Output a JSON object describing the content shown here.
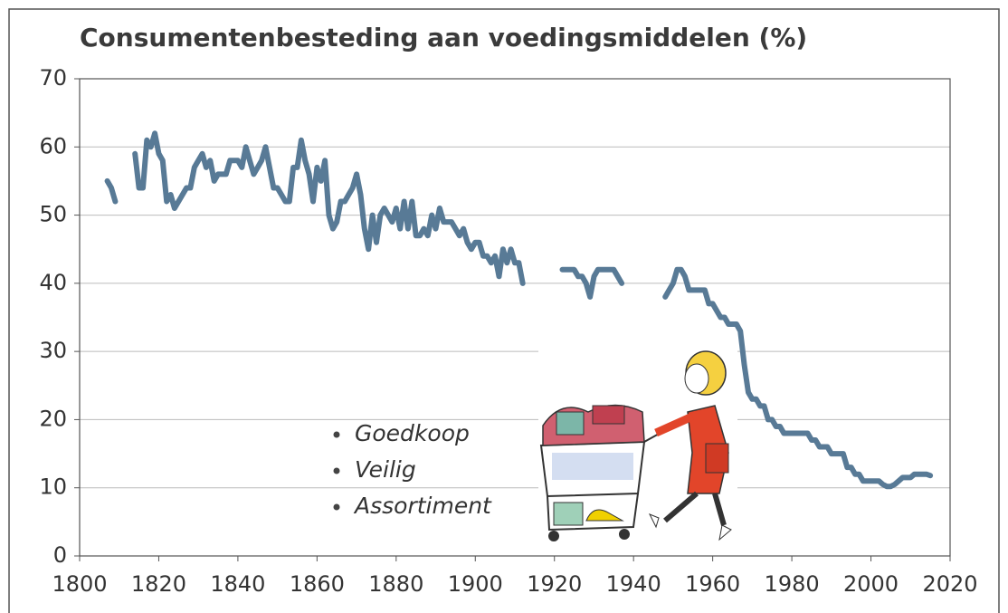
{
  "chart_data": {
    "type": "line",
    "title": "Consumentenbesteding aan voedingsmiddelen  (%)",
    "x": [
      1807,
      1808,
      1809,
      1810,
      1811,
      1812,
      1813,
      1814,
      1815,
      1816,
      1817,
      1818,
      1819,
      1820,
      1821,
      1822,
      1823,
      1824,
      1825,
      1826,
      1827,
      1828,
      1829,
      1830,
      1831,
      1832,
      1833,
      1834,
      1835,
      1836,
      1837,
      1838,
      1839,
      1840,
      1841,
      1842,
      1843,
      1844,
      1845,
      1846,
      1847,
      1848,
      1849,
      1850,
      1851,
      1852,
      1853,
      1854,
      1855,
      1856,
      1857,
      1858,
      1859,
      1860,
      1861,
      1862,
      1863,
      1864,
      1865,
      1866,
      1867,
      1868,
      1869,
      1870,
      1871,
      1872,
      1873,
      1874,
      1875,
      1876,
      1877,
      1878,
      1879,
      1880,
      1881,
      1882,
      1883,
      1884,
      1885,
      1886,
      1887,
      1888,
      1889,
      1890,
      1891,
      1892,
      1893,
      1894,
      1895,
      1896,
      1897,
      1898,
      1899,
      1900,
      1901,
      1902,
      1903,
      1904,
      1905,
      1906,
      1907,
      1908,
      1909,
      1910,
      1911,
      1912,
      1913,
      1914,
      1915,
      1916,
      1917,
      1918,
      1919,
      1920,
      1921,
      1922,
      1923,
      1924,
      1925,
      1926,
      1927,
      1928,
      1929,
      1930,
      1931,
      1932,
      1933,
      1934,
      1935,
      1936,
      1937,
      1938,
      1939,
      1940,
      1941,
      1942,
      1943,
      1944,
      1945,
      1946,
      1947,
      1948,
      1949,
      1950,
      1951,
      1952,
      1953,
      1954,
      1955,
      1956,
      1957,
      1958,
      1959,
      1960,
      1961,
      1962,
      1963,
      1964,
      1965,
      1966,
      1967,
      1968,
      1969,
      1970,
      1971,
      1972,
      1973,
      1974,
      1975,
      1976,
      1977,
      1978,
      1979,
      1980,
      1981,
      1982,
      1983,
      1984,
      1985,
      1986,
      1987,
      1988,
      1989,
      1990,
      1991,
      1992,
      1993,
      1994,
      1995,
      1996,
      1997,
      1998,
      1999,
      2000,
      2001,
      2002,
      2003,
      2004,
      2005,
      2006,
      2007,
      2008,
      2009,
      2010,
      2011,
      2012,
      2013,
      2014,
      2015
    ],
    "series": [
      {
        "color": "#587a96",
        "values": [
          55,
          54,
          52,
          null,
          null,
          null,
          null,
          59,
          54,
          54,
          61,
          60,
          62,
          59,
          58,
          52,
          53,
          51,
          52,
          53,
          54,
          54,
          57,
          58,
          59,
          57,
          58,
          55,
          56,
          56,
          56,
          58,
          58,
          58,
          57,
          60,
          58,
          56,
          57,
          58,
          60,
          57,
          54,
          54,
          53,
          52,
          52,
          57,
          57,
          61,
          58,
          56,
          52,
          57,
          55,
          58,
          50,
          48,
          49,
          52,
          52,
          53,
          54,
          56,
          53,
          48,
          45,
          50,
          46,
          50,
          51,
          50,
          49,
          51,
          48,
          52,
          48,
          52,
          47,
          47,
          48,
          47,
          50,
          48,
          51,
          49,
          49,
          49,
          48,
          47,
          48,
          46,
          45,
          46,
          46,
          44,
          44,
          43,
          44,
          41,
          45,
          43,
          45,
          43,
          43,
          40,
          null,
          null,
          null,
          null,
          null,
          null,
          null,
          null,
          null,
          42,
          42,
          42,
          42,
          41,
          41,
          40,
          38,
          41,
          42,
          42,
          42,
          42,
          42,
          41,
          40,
          null,
          null,
          null,
          null,
          null,
          null,
          null,
          null,
          null,
          null,
          38,
          39,
          40,
          42,
          42,
          41,
          39,
          39,
          39,
          39,
          39,
          37,
          37,
          36,
          35,
          35,
          34,
          34,
          34,
          33,
          28,
          24,
          23,
          23,
          22,
          22,
          20,
          20,
          19,
          19,
          18,
          18,
          18,
          18,
          18,
          18,
          18,
          17,
          17,
          16,
          16,
          16,
          15,
          15,
          15,
          15,
          13,
          13,
          12,
          12,
          11,
          11,
          11,
          11,
          11,
          10.5,
          10.2,
          10.2,
          10.5,
          11,
          11.5,
          11.5,
          11.5,
          12,
          12,
          12,
          12,
          11.8
        ]
      }
    ],
    "xlim": [
      1800,
      2020
    ],
    "xticks": [
      1800,
      1820,
      1840,
      1860,
      1880,
      1900,
      1920,
      1940,
      1960,
      1980,
      2000,
      2020
    ],
    "ylim": [
      0,
      70
    ],
    "yticks": [
      0,
      10,
      20,
      30,
      40,
      50,
      60,
      70
    ],
    "grid": true,
    "annotations": [
      "Goedkoop",
      "Veilig",
      "Assortiment"
    ]
  }
}
